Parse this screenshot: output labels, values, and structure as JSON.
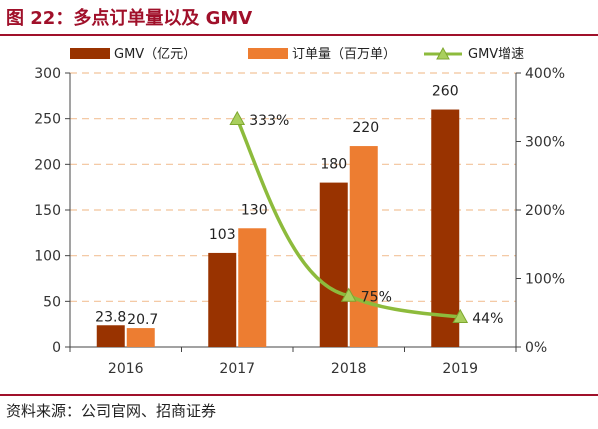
{
  "figure": {
    "title": "图 22：多点订单量以及 GMV",
    "source": "资料来源：公司官网、招商证券"
  },
  "colors": {
    "brand": "#a0102a",
    "gmv_bar": "#993300",
    "orders_bar": "#ed7d31",
    "growth_line": "#8dbb3c",
    "grid": "#f2c39a"
  },
  "chart_data": {
    "type": "bar",
    "categories": [
      "2016",
      "2017",
      "2018",
      "2019"
    ],
    "series": [
      {
        "name": "GMV（亿元）",
        "kind": "bar",
        "axis": "left",
        "values": [
          23.8,
          103,
          180,
          260
        ],
        "labels": [
          "23.8",
          "103",
          "180",
          "260"
        ]
      },
      {
        "name": "订单量（百万单）",
        "kind": "bar",
        "axis": "left",
        "values": [
          20.7,
          130,
          220,
          null
        ],
        "labels": [
          "20.7",
          "130",
          "220",
          ""
        ]
      },
      {
        "name": "GMV增速",
        "kind": "line",
        "axis": "right",
        "values": [
          null,
          333,
          75,
          44
        ],
        "labels": [
          "",
          "333%",
          "75%",
          "44%"
        ]
      }
    ],
    "y_left": {
      "lim": [
        0,
        300
      ],
      "ticks": [
        "0",
        "50",
        "100",
        "150",
        "200",
        "250",
        "300"
      ]
    },
    "y_right": {
      "lim": [
        0,
        400
      ],
      "ticks": [
        "0%",
        "100%",
        "200%",
        "300%",
        "400%"
      ]
    },
    "grid": true,
    "legend_position": "top"
  }
}
